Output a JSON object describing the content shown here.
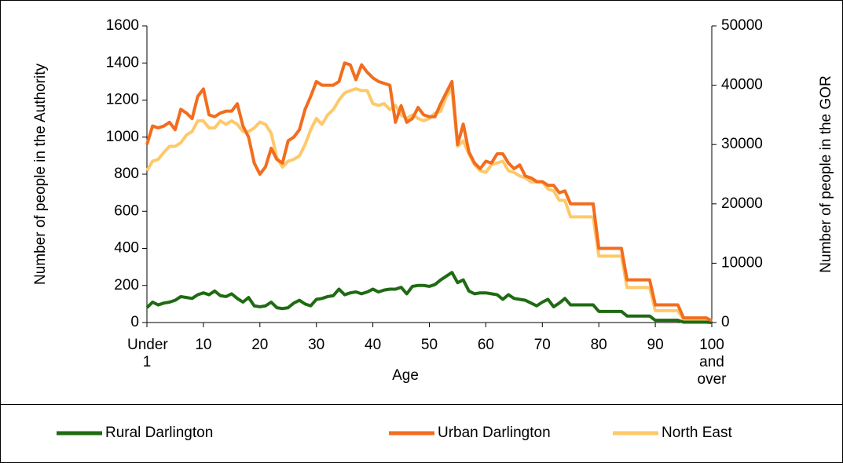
{
  "chart_data": {
    "type": "line",
    "x_label": "Age",
    "y_label": "Number of people in the Authority",
    "y2_label": "Number of people in the GOR",
    "categories": [
      "Under 1",
      null,
      null,
      null,
      null,
      null,
      null,
      null,
      null,
      null,
      "10",
      null,
      null,
      null,
      null,
      null,
      null,
      null,
      null,
      null,
      "20",
      null,
      null,
      null,
      null,
      null,
      null,
      null,
      null,
      null,
      "30",
      null,
      null,
      null,
      null,
      null,
      null,
      null,
      null,
      null,
      "40",
      null,
      null,
      null,
      null,
      null,
      null,
      null,
      null,
      null,
      "50",
      null,
      null,
      null,
      null,
      null,
      null,
      null,
      null,
      null,
      "60",
      null,
      null,
      null,
      null,
      null,
      null,
      null,
      null,
      null,
      "70",
      null,
      null,
      null,
      null,
      null,
      null,
      null,
      null,
      null,
      "80",
      null,
      null,
      null,
      null,
      null,
      null,
      null,
      null,
      null,
      "90",
      null,
      null,
      null,
      null,
      null,
      null,
      null,
      null,
      null,
      "100 and over"
    ],
    "ylim": [
      0,
      1600
    ],
    "yticks": [
      0,
      200,
      400,
      600,
      800,
      1000,
      1200,
      1400,
      1600
    ],
    "y2lim": [
      0,
      50000
    ],
    "y2ticks": [
      0,
      10000,
      20000,
      30000,
      40000,
      50000
    ],
    "legend": "bottom",
    "series": [
      {
        "name": "Rural Darlington",
        "color": "#1e6b12",
        "axis": "y",
        "values": [
          80,
          110,
          95,
          105,
          110,
          120,
          140,
          135,
          130,
          150,
          160,
          150,
          170,
          145,
          140,
          155,
          130,
          110,
          135,
          90,
          85,
          90,
          110,
          80,
          75,
          80,
          105,
          120,
          100,
          90,
          125,
          130,
          140,
          145,
          180,
          150,
          160,
          165,
          155,
          165,
          180,
          165,
          175,
          180,
          180,
          190,
          155,
          195,
          200,
          200,
          195,
          205,
          230,
          250,
          270,
          215,
          230,
          170,
          155,
          160,
          160,
          155,
          150,
          125,
          150,
          130,
          125,
          120,
          105,
          90,
          110,
          125,
          85,
          105,
          130,
          95,
          95,
          95,
          95,
          95,
          60,
          60,
          60,
          60,
          60,
          35,
          35,
          35,
          35,
          35,
          12,
          12,
          12,
          12,
          12,
          2,
          2,
          2,
          2,
          2,
          0
        ]
      },
      {
        "name": "Urban Darlington",
        "color": "#f26d1e",
        "axis": "y",
        "values": [
          960,
          1060,
          1050,
          1060,
          1080,
          1040,
          1150,
          1130,
          1100,
          1220,
          1260,
          1120,
          1110,
          1130,
          1140,
          1140,
          1180,
          1060,
          1000,
          860,
          800,
          840,
          940,
          880,
          860,
          980,
          1000,
          1040,
          1150,
          1220,
          1300,
          1280,
          1280,
          1280,
          1300,
          1400,
          1390,
          1310,
          1390,
          1350,
          1320,
          1300,
          1290,
          1280,
          1080,
          1170,
          1080,
          1100,
          1160,
          1120,
          1110,
          1110,
          1180,
          1240,
          1300,
          960,
          1070,
          920,
          860,
          830,
          870,
          860,
          910,
          910,
          860,
          830,
          850,
          790,
          780,
          760,
          760,
          740,
          740,
          700,
          710,
          640,
          640,
          640,
          640,
          640,
          400,
          400,
          400,
          400,
          400,
          230,
          230,
          230,
          230,
          230,
          95,
          95,
          95,
          95,
          95,
          25,
          25,
          25,
          25,
          25,
          10
        ]
      },
      {
        "name": "North East",
        "color": "#fdc96a",
        "axis": "y2",
        "values": [
          25600,
          27200,
          27500,
          28700,
          29700,
          29700,
          30300,
          31600,
          32200,
          34000,
          34000,
          32800,
          32800,
          34000,
          33400,
          34000,
          33400,
          32200,
          32200,
          32800,
          33800,
          33400,
          31900,
          27800,
          26200,
          27200,
          27500,
          28100,
          30000,
          32500,
          34400,
          33400,
          35000,
          35900,
          37500,
          38700,
          39100,
          39400,
          39100,
          39100,
          36900,
          36600,
          36900,
          35900,
          36600,
          35000,
          34400,
          35000,
          34400,
          34000,
          34400,
          35300,
          35600,
          38100,
          39400,
          29700,
          30600,
          28400,
          26600,
          25600,
          25300,
          26600,
          26900,
          27200,
          25600,
          25300,
          24700,
          24400,
          23700,
          23700,
          23700,
          22500,
          22200,
          20600,
          20600,
          17800,
          17800,
          17800,
          17800,
          17800,
          11200,
          11200,
          11200,
          11200,
          11200,
          5900,
          5900,
          5900,
          5900,
          5900,
          2000,
          2000,
          2000,
          2000,
          2000,
          500,
          500,
          500,
          500,
          500,
          200
        ]
      }
    ]
  }
}
